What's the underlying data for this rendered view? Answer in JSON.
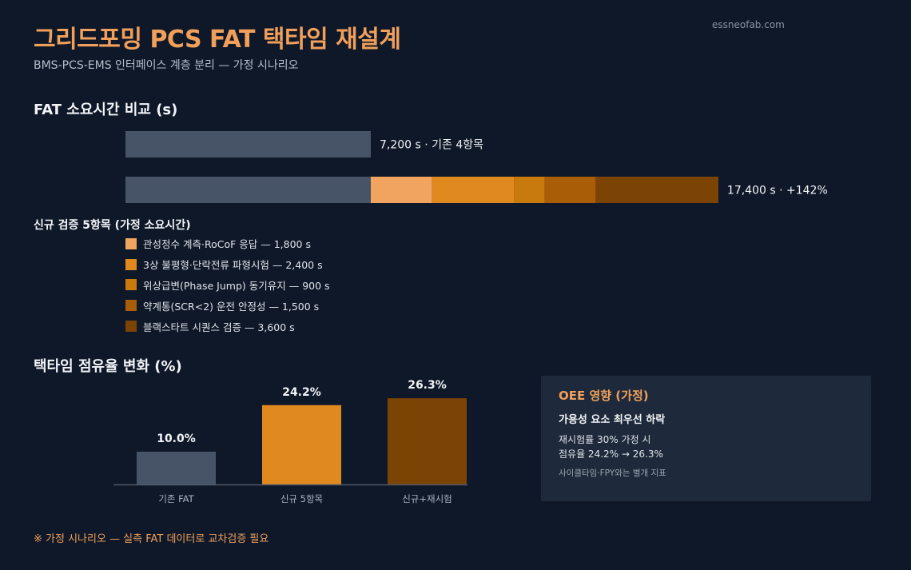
{
  "header": {
    "title": "그리드포밍 PCS FAT 택타임 재설계",
    "subtitle": "BMS-PCS-EMS 인터페이스 계층 분리 — 가정 시나리오",
    "site": "essneofab.com"
  },
  "sections": {
    "fat_title": "FAT 소요시간 비교 (s)",
    "share_title": "택타임 점유율 변화 (%)"
  },
  "legend": {
    "title": "신규 검증 5항목 (가정 소요시간)",
    "items": [
      {
        "label": "관성정수 계측·RoCoF 응답 — 1,800 s",
        "color": "#f0a460"
      },
      {
        "label": "3상 불평형·단락전류 파형시험 — 2,400 s",
        "color": "#e0891e"
      },
      {
        "label": "위상급변(Phase Jump) 동기유지 — 900 s",
        "color": "#c97a0c"
      },
      {
        "label": "약계통(SCR<2) 운전 안정성 — 1,500 s",
        "color": "#a85d06"
      },
      {
        "label": "블랙스타트 시퀀스 검증 — 3,600 s",
        "color": "#7c4404"
      }
    ]
  },
  "footnote": "※ 가정 시나리오 — 실측 FAT 데이터로 교차검증 필요",
  "oee": {
    "title": "OEE 영향 (가정)",
    "headline": "가용성 요소 최우선 하락",
    "line1": "재시험률 30% 가정 시",
    "line2": "점유율 24.2% → 26.3%",
    "note": "사이클타임·FPY와는 별개 지표"
  },
  "chart_data": [
    {
      "type": "bar",
      "orientation": "horizontal",
      "stacked": true,
      "title": "FAT 소요시간 비교 (s)",
      "bars": [
        {
          "label": "7,200 s · 기존 4항목",
          "segments": [
            {
              "value": 7200,
              "color": "#475467"
            }
          ]
        },
        {
          "label": "17,400 s · +142%",
          "segments": [
            {
              "value": 7200,
              "color": "#475467"
            },
            {
              "value": 1800,
              "color": "#f0a460"
            },
            {
              "value": 2400,
              "color": "#e0891e"
            },
            {
              "value": 900,
              "color": "#c97a0c"
            },
            {
              "value": 1500,
              "color": "#a85d06"
            },
            {
              "value": 3600,
              "color": "#7c4404"
            }
          ]
        }
      ]
    },
    {
      "type": "bar",
      "title": "택타임 점유율 변화 (%)",
      "categories": [
        "기존 FAT",
        "신규 5항목",
        "신규+재시험"
      ],
      "values": [
        10.0,
        24.2,
        26.3
      ],
      "value_labels": [
        "10.0%",
        "24.2%",
        "26.3%"
      ],
      "colors": [
        "#475467",
        "#e0891e",
        "#7c4404"
      ]
    }
  ]
}
